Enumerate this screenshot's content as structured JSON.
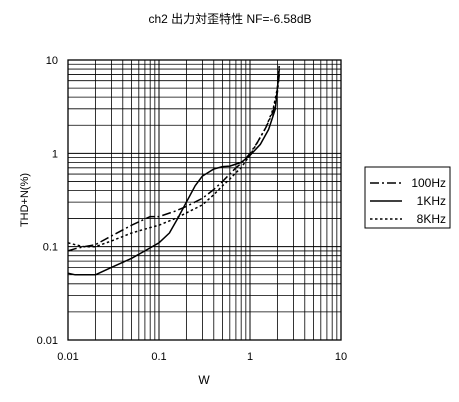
{
  "chart_data": {
    "type": "line",
    "title": "ch2 出力対歪特性 NF=-6.58dB",
    "xlabel": "W",
    "ylabel": "THD+N(%)",
    "x_scale": "log",
    "y_scale": "log",
    "xlim": [
      0.01,
      10
    ],
    "ylim": [
      0.01,
      10
    ],
    "x_ticks": [
      "0.01",
      "0.1",
      "1",
      "10"
    ],
    "y_ticks": [
      "0.01",
      "0.1",
      "1",
      "10"
    ],
    "grid": true,
    "legend_position": "right",
    "series": [
      {
        "name": "100Hz",
        "style": "dash-dot",
        "x": [
          0.01,
          0.012,
          0.015,
          0.02,
          0.03,
          0.05,
          0.08,
          0.1,
          0.15,
          0.2,
          0.3,
          0.4,
          0.5,
          0.6,
          0.7,
          0.8,
          0.9,
          1.0,
          1.2,
          1.5,
          1.8,
          2.0,
          2.1
        ],
        "y": [
          0.09,
          0.095,
          0.1,
          0.105,
          0.13,
          0.17,
          0.21,
          0.21,
          0.24,
          0.27,
          0.33,
          0.41,
          0.5,
          0.6,
          0.7,
          0.78,
          0.88,
          1.0,
          1.3,
          1.9,
          2.8,
          4.5,
          7.0
        ]
      },
      {
        "name": "1KHz",
        "style": "solid",
        "x": [
          0.01,
          0.012,
          0.015,
          0.02,
          0.03,
          0.04,
          0.05,
          0.07,
          0.1,
          0.13,
          0.16,
          0.2,
          0.25,
          0.3,
          0.4,
          0.5,
          0.6,
          0.8,
          1.0,
          1.3,
          1.6,
          1.9,
          2.1
        ],
        "y": [
          0.052,
          0.05,
          0.05,
          0.05,
          0.06,
          0.068,
          0.075,
          0.09,
          0.11,
          0.14,
          0.2,
          0.3,
          0.45,
          0.57,
          0.68,
          0.72,
          0.73,
          0.8,
          0.95,
          1.25,
          1.8,
          3.0,
          8.0
        ]
      },
      {
        "name": "8KHz",
        "style": "dotted",
        "x": [
          0.01,
          0.012,
          0.015,
          0.02,
          0.03,
          0.05,
          0.08,
          0.1,
          0.15,
          0.2,
          0.3,
          0.4,
          0.5,
          0.6,
          0.7,
          0.8,
          0.9,
          1.0,
          1.2,
          1.5,
          1.8,
          2.0,
          2.1
        ],
        "y": [
          0.11,
          0.105,
          0.1,
          0.1,
          0.115,
          0.14,
          0.16,
          0.17,
          0.2,
          0.23,
          0.28,
          0.36,
          0.45,
          0.53,
          0.62,
          0.7,
          0.83,
          0.95,
          1.3,
          1.9,
          3.0,
          5.0,
          9.0
        ]
      }
    ]
  }
}
